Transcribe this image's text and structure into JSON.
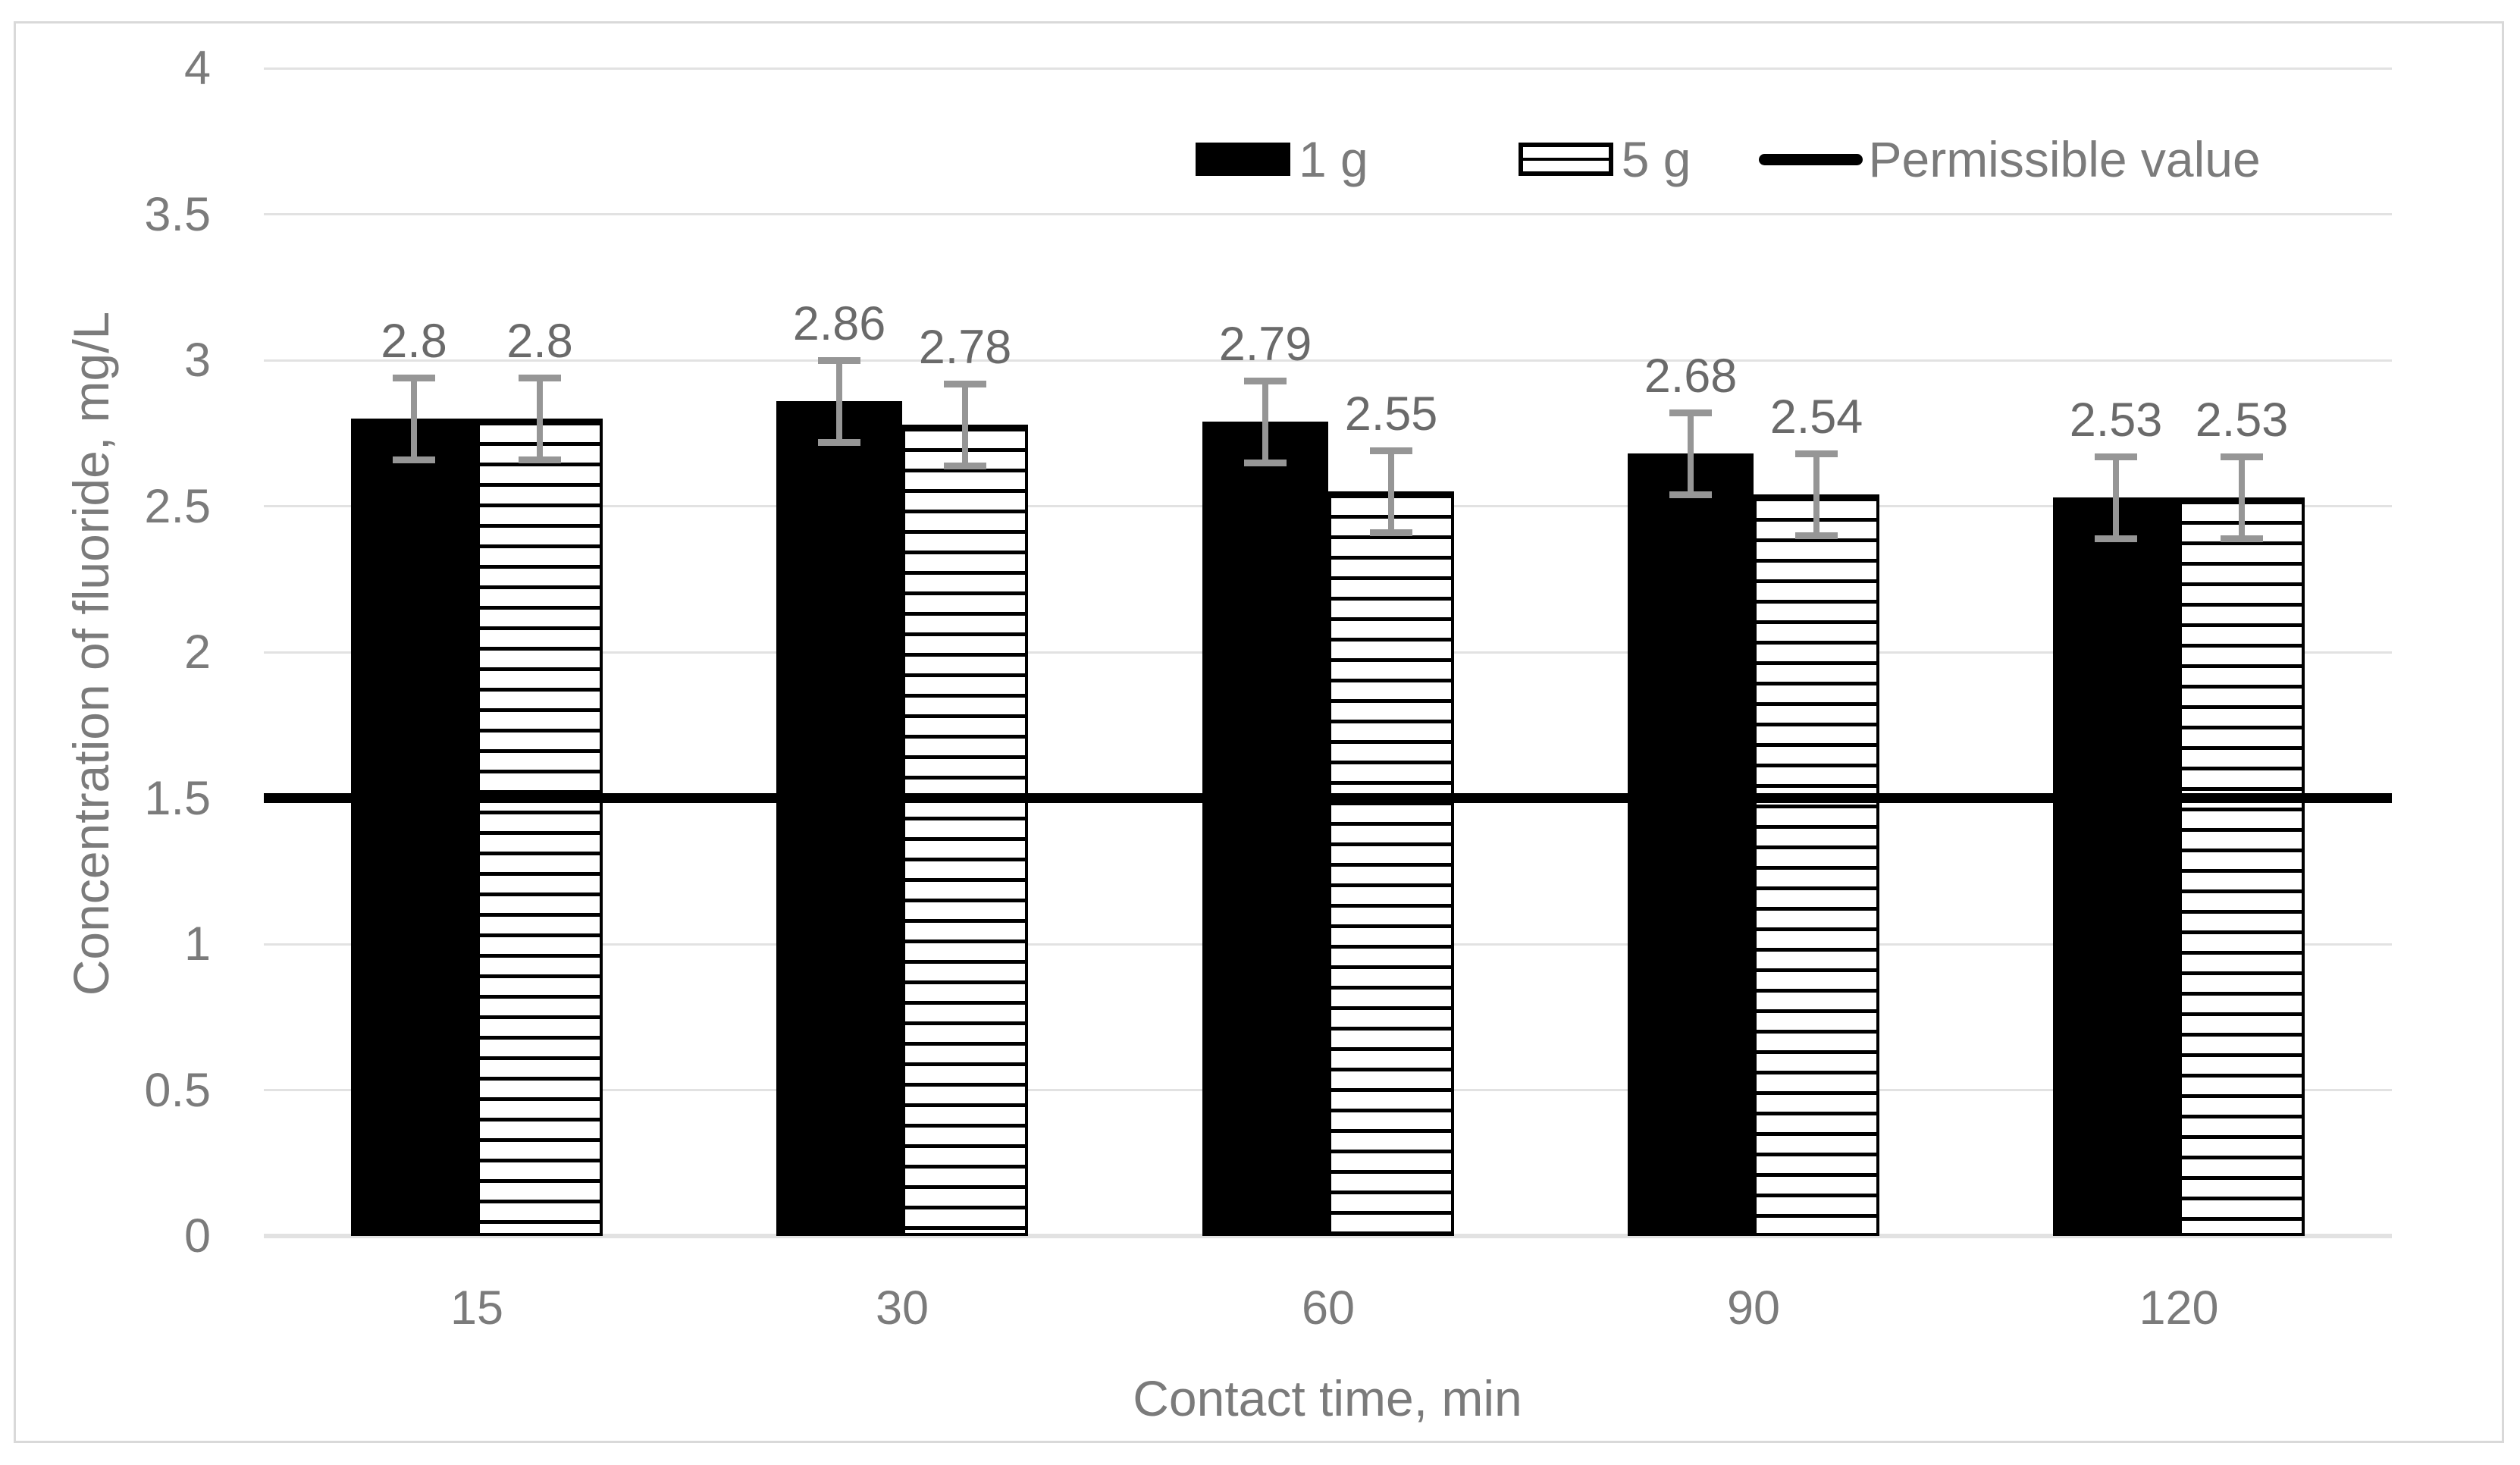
{
  "chart_data": {
    "type": "bar",
    "title": "",
    "categories": [
      "15",
      "30",
      "60",
      "90",
      "120"
    ],
    "series": [
      {
        "name": "1 g",
        "style": "solid-black",
        "values": [
          2.8,
          2.86,
          2.79,
          2.68,
          2.53
        ],
        "labels": [
          "2.8",
          "2.86",
          "2.79",
          "2.68",
          "2.53"
        ]
      },
      {
        "name": "5 g",
        "style": "striped",
        "values": [
          2.8,
          2.78,
          2.55,
          2.54,
          2.53
        ],
        "labels": [
          "2.8",
          "2.78",
          "2.55",
          "2.54",
          "2.53"
        ]
      }
    ],
    "error_bar_plus_minus": 0.14,
    "reference_line": {
      "name": "Permissible value",
      "value": 1.5
    },
    "xlabel": "Contact time, min",
    "ylabel": "Concentration of fluoride, mg/L",
    "ylim": [
      0,
      4
    ],
    "ytick_step": 0.5,
    "yticks": [
      "0",
      "0.5",
      "1",
      "1.5",
      "2",
      "2.5",
      "3",
      "3.5",
      "4"
    ],
    "grid": "horizontal",
    "legend_position": "top-right-inside"
  },
  "colors": {
    "bar_1g": "#000000",
    "bar_5g_stripes": "#000000",
    "reference_line": "#000000",
    "axis_text": "#7b7b7b",
    "data_label_text": "#6a6a6a",
    "error_bar": "#969696",
    "gridline": "#e2e2e2",
    "figure_border": "#d9d9d9",
    "background": "#ffffff"
  }
}
